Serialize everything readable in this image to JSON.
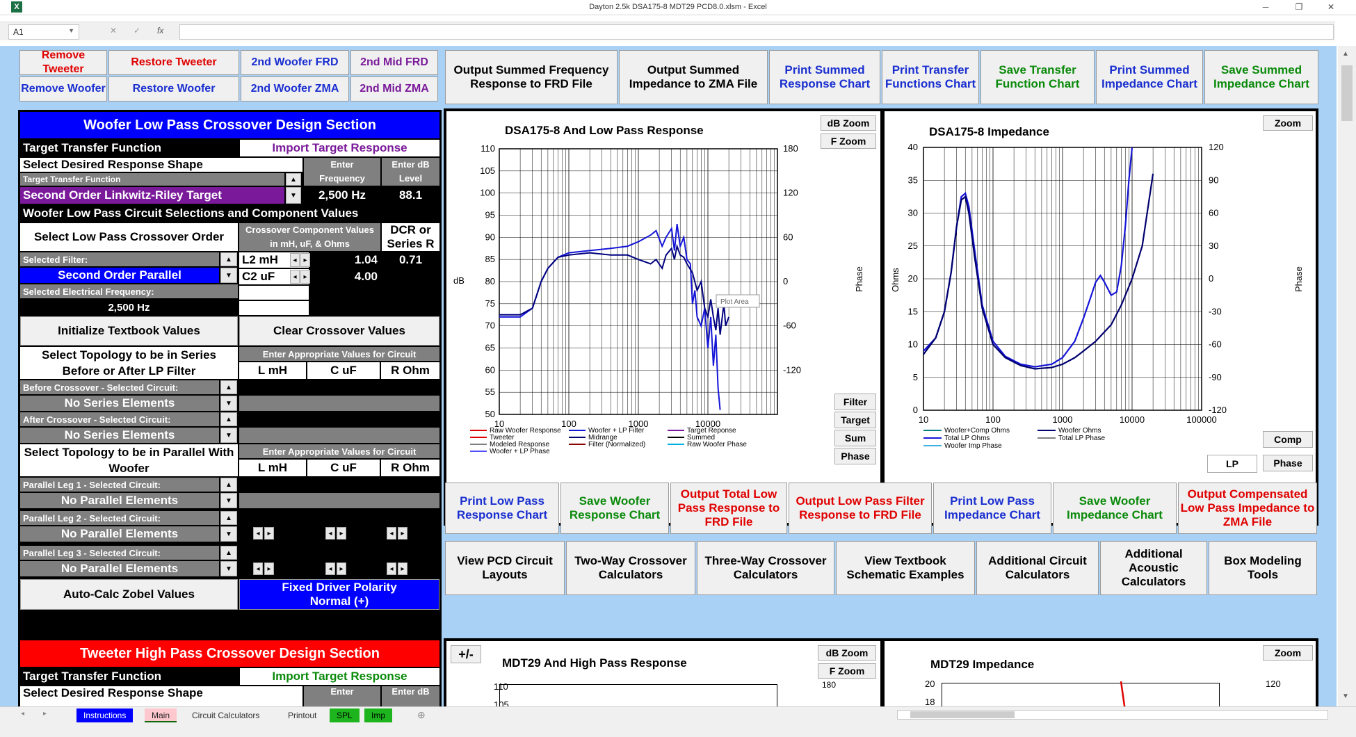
{
  "window": {
    "title": "Dayton 2.5k DSA175-8 MDT29 PCD8.0.xlsm - Excel",
    "app_icon": "X"
  },
  "formula_bar": {
    "name_box": "A1",
    "cancel": "✕",
    "enter": "✓",
    "fx": "fx",
    "value": ""
  },
  "top_buttons": {
    "remove_tweeter": "Remove Tweeter",
    "restore_tweeter": "Restore Tweeter",
    "second_woofer_frd": "2nd Woofer FRD",
    "second_mid_frd": "2nd Mid FRD",
    "remove_woofer": "Remove Woofer",
    "restore_woofer": "Restore Woofer",
    "second_woofer_zma": "2nd Woofer ZMA",
    "second_mid_zma": "2nd Mid ZMA"
  },
  "output_buttons": [
    "Output Summed Frequency Response to FRD File",
    "Output Summed Impedance to ZMA File",
    "Print Summed Response Chart",
    "Print Transfer Functions Chart",
    "Save Transfer Function Chart",
    "Print Summed Impedance Chart",
    "Save Summed Impedance Chart"
  ],
  "woofer_section": {
    "title": "Woofer Low Pass Crossover Design Section",
    "target_transfer_function": "Target Transfer Function",
    "import_target": "Import Target Response",
    "select_shape": "Select Desired Response Shape",
    "enter_frequency": "Enter Frequency",
    "enter_db": "Enter dB Level",
    "ttf_small": "Target Transfer Function",
    "ttf_value": "Second Order Linkwitz-Riley Target",
    "frequency": "2,500 Hz",
    "db_level": "88.1",
    "circuit_heading": "Woofer Low Pass Circuit Selections and Component Values",
    "select_order": "Select Low Pass Crossover Order",
    "component_values": "Crossover Component Values in mH, uF, & Ohms",
    "dcr": "DCR or Series R",
    "selected_filter_label": "Selected Filter:",
    "selected_filter": "Second Order Parallel",
    "comp1_name": "L2 mH",
    "comp1_val": "1.04",
    "comp1_dcr": "0.71",
    "comp2_name": "C2  uF",
    "comp2_val": "4.00",
    "elec_freq_label": "Selected Electrical Frequency:",
    "elec_freq": "2,500 Hz",
    "init_btn": "Initialize Textbook Values",
    "clear_btn": "Clear Crossover Values",
    "series_topo": "Select Topology to be in Series Before or After LP Filter",
    "enter_values": "Enter Appropriate Values for Circuit",
    "col_l": "L mH",
    "col_c": "C uF",
    "col_r": "R Ohm",
    "before_label": "Before Crossover - Selected Circuit:",
    "before_value": "No Series Elements",
    "after_label": "After Crossover - Selected Circuit:",
    "after_value": "No Series Elements",
    "parallel_topo": "Select Topology to be in Parallel With Woofer",
    "enter_values2": "Enter Appropriate Values for Circuit",
    "leg1_label": "Parallel Leg 1 - Selected Circuit:",
    "leg1_value": "No Parallel Elements",
    "leg2_label": "Parallel Leg 2 - Selected Circuit:",
    "leg2_value": "No Parallel Elements",
    "leg3_label": "Parallel Leg 3 - Selected Circuit:",
    "leg3_value": "No Parallel Elements",
    "zobel_btn": "Auto-Calc Zobel Values",
    "polarity_btn": "Fixed Driver Polarity Normal (+)"
  },
  "tweeter_section": {
    "title": "Tweeter High Pass Crossover Design Section",
    "target_transfer_function": "Target Transfer Function",
    "import_target": "Import Target Response",
    "select_shape": "Select Desired Response Shape",
    "enter": "Enter",
    "enter_db": "Enter dB"
  },
  "response_chart": {
    "title": "DSA175-8  And Low Pass Response",
    "db_zoom": "dB Zoom",
    "f_zoom": "F Zoom",
    "y_label": "dB",
    "y2_label": "Phase",
    "y_ticks": [
      "110",
      "105",
      "100",
      "95",
      "90",
      "85",
      "80",
      "75",
      "70",
      "65",
      "60",
      "55",
      "50"
    ],
    "y2_ticks": [
      "180",
      "120",
      "60",
      "0",
      "-60",
      "-120"
    ],
    "x_ticks": [
      "10",
      "100",
      "1000",
      "10000"
    ],
    "tooltip": "Plot Area",
    "side_buttons": [
      "Filter",
      "Target",
      "Sum",
      "Phase"
    ],
    "legend": [
      "Raw Woofer Response",
      "Woofer + LP Filter",
      "Target Reponse",
      "Tweeter",
      "Midrange",
      "Summed",
      "Modeled Response",
      "Filter (Normalized)",
      "Raw Woofer Phase",
      "Woofer + LP  Phase"
    ]
  },
  "impedance_chart": {
    "title": "DSA175-8  Impedance",
    "zoom": "Zoom",
    "y_label": "Ohms",
    "y2_label": "Phase",
    "y_ticks": [
      "40",
      "35",
      "30",
      "25",
      "20",
      "15",
      "10",
      "5",
      "0"
    ],
    "y2_ticks": [
      "120",
      "90",
      "60",
      "30",
      "0",
      "-30",
      "-60",
      "-90",
      "-120"
    ],
    "x_ticks": [
      "10",
      "100",
      "1000",
      "10000",
      "100000"
    ],
    "legend": [
      "Woofer+Comp Ohms",
      "Woofer Ohms",
      "Total LP Ohms",
      "Total LP Phase",
      "Woofer Imp Phase"
    ],
    "btn_comp": "Comp",
    "btn_lp": "LP",
    "btn_phase": "Phase"
  },
  "action_row1": [
    "Print Low Pass Response Chart",
    "Save Woofer Response Chart",
    "Output Total  Low Pass Response to FRD File",
    "Output Low Pass Filter Response to FRD File",
    "Print Low Pass Impedance Chart",
    "Save Woofer Impedance Chart",
    "Output Compensated Low Pass Impedance to ZMA File"
  ],
  "action_row2": [
    "View PCD Circuit Layouts",
    "Two-Way Crossover Calculators",
    "Three-Way Crossover Calculators",
    "View Textbook Schematic Examples",
    "Additional Circuit Calculators",
    "Additional Acoustic Calculators",
    "Box Modeling Tools"
  ],
  "hp_chart": {
    "pm": "+/-",
    "title": "MDT29  And High Pass Response",
    "db_zoom": "dB Zoom",
    "f_zoom": "F Zoom",
    "y1": "110",
    "y2": "105",
    "y2top": "180"
  },
  "hp_imp_chart": {
    "title": "MDT29  Impedance",
    "zoom": "Zoom",
    "y1": "20",
    "y2": "18",
    "y2top": "120"
  },
  "sheet_tabs": [
    "Instructions",
    "Main",
    "Circuit Calculators",
    "Printout",
    "SPL",
    "Imp"
  ],
  "colors": {
    "woofer_curve": "#1010d0",
    "lp_curve": "#00006e",
    "red_header": "#ff0000",
    "blue_header": "#0000ff",
    "purple_select": "#7a1a9a"
  }
}
